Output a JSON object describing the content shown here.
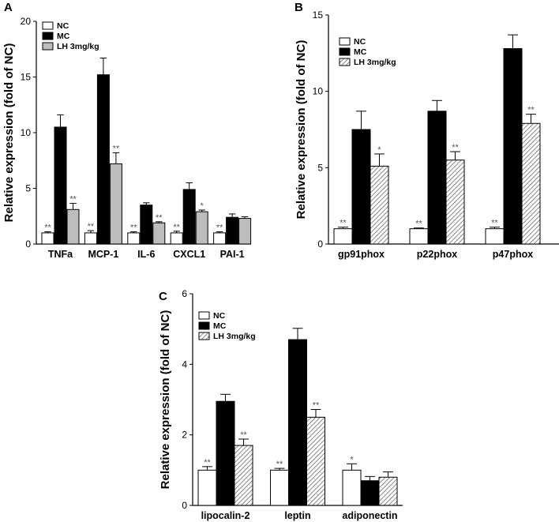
{
  "figure": {
    "legend_entries": [
      "NC",
      "MC",
      "LH 3mg/kg"
    ],
    "colors": {
      "NC": "#ffffff",
      "MC": "#000000",
      "LH 3mg/kg": "#bdbdbd"
    }
  },
  "chart_data": [
    {
      "panel": "A",
      "type": "bar",
      "ylabel": "Relative expression (fold of NC)",
      "ylim": [
        0,
        20
      ],
      "yticks": [
        "0",
        "5",
        "10",
        "15",
        "20"
      ],
      "categories": [
        "TNFa",
        "MCP-1",
        "IL-6",
        "CXCL1",
        "PAI-1"
      ],
      "legend_position": "top-left",
      "series": [
        {
          "name": "NC",
          "values": [
            1.0,
            1.0,
            1.0,
            1.0,
            1.0
          ],
          "errors": [
            0.1,
            0.2,
            0.1,
            0.15,
            0.1
          ],
          "sig": [
            "**",
            "**",
            "**",
            "**",
            "**"
          ]
        },
        {
          "name": "MC",
          "values": [
            10.5,
            15.2,
            3.5,
            4.9,
            2.4
          ],
          "errors": [
            1.1,
            1.5,
            0.2,
            0.6,
            0.3
          ],
          "sig": [
            "",
            "",
            "",
            "",
            ""
          ]
        },
        {
          "name": "LH 3mg/kg",
          "values": [
            3.1,
            7.2,
            1.9,
            2.9,
            2.3
          ],
          "errors": [
            0.55,
            1.0,
            0.1,
            0.15,
            0.15
          ],
          "sig": [
            "**",
            "**",
            "**",
            "*",
            ""
          ]
        }
      ]
    },
    {
      "panel": "B",
      "type": "bar",
      "ylabel": "Relative expression (fold of NC)",
      "ylim": [
        0,
        15
      ],
      "yticks": [
        "0",
        "5",
        "10",
        "15"
      ],
      "categories": [
        "gp91phox",
        "p22phox",
        "p47phox"
      ],
      "legend_position": "top-left",
      "series": [
        {
          "name": "NC",
          "values": [
            1.0,
            1.0,
            1.0
          ],
          "errors": [
            0.1,
            0.05,
            0.1
          ],
          "sig": [
            "**",
            "**",
            "**"
          ]
        },
        {
          "name": "MC",
          "values": [
            7.5,
            8.7,
            12.8
          ],
          "errors": [
            1.2,
            0.7,
            0.9
          ],
          "sig": [
            "",
            "",
            ""
          ]
        },
        {
          "name": "LH 3mg/kg",
          "values": [
            5.1,
            5.5,
            7.9
          ],
          "errors": [
            0.8,
            0.55,
            0.6
          ],
          "sig": [
            "*",
            "**",
            "**"
          ]
        }
      ]
    },
    {
      "panel": "C",
      "type": "bar",
      "ylabel": "Relative expression (fold of NC)",
      "ylim": [
        0,
        6
      ],
      "yticks": [
        "0",
        "2",
        "4",
        "6"
      ],
      "categories": [
        "lipocalin-2",
        "leptin",
        "adiponectin"
      ],
      "legend_position": "top-left",
      "series": [
        {
          "name": "NC",
          "values": [
            1.0,
            1.0,
            1.0
          ],
          "errors": [
            0.1,
            0.05,
            0.18
          ],
          "sig": [
            "**",
            "**",
            "*"
          ]
        },
        {
          "name": "MC",
          "values": [
            2.95,
            4.7,
            0.7
          ],
          "errors": [
            0.2,
            0.32,
            0.12
          ],
          "sig": [
            "",
            "",
            ""
          ]
        },
        {
          "name": "LH 3mg/kg",
          "values": [
            1.7,
            2.5,
            0.8
          ],
          "errors": [
            0.18,
            0.22,
            0.15
          ],
          "sig": [
            "**",
            "**",
            ""
          ]
        }
      ]
    }
  ]
}
